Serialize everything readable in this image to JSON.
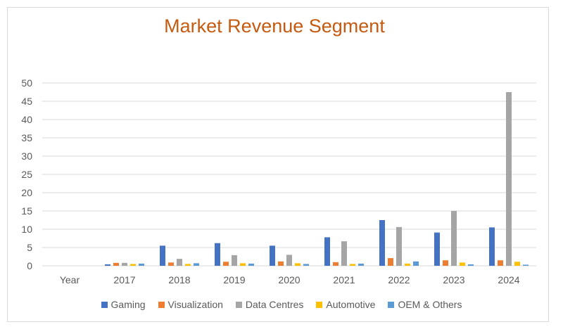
{
  "chart_data": {
    "type": "bar",
    "title": "Market Revenue Segment",
    "categories": [
      "Year",
      "2017",
      "2018",
      "2019",
      "2020",
      "2021",
      "2022",
      "2023",
      "2024"
    ],
    "ylim": [
      0,
      50
    ],
    "yticks": [
      0,
      5,
      10,
      15,
      20,
      25,
      30,
      35,
      40,
      45,
      50
    ],
    "grid": true,
    "legend_position": "bottom",
    "series": [
      {
        "name": "Gaming",
        "color": "#4472c4",
        "values": [
          0,
          0.4,
          5.5,
          6.2,
          5.5,
          7.8,
          12.5,
          9.1,
          10.5
        ]
      },
      {
        "name": "Visualization",
        "color": "#ed7d31",
        "values": [
          0,
          0.8,
          0.9,
          1.1,
          1.2,
          1.0,
          2.1,
          1.5,
          1.5
        ]
      },
      {
        "name": "Data Centres",
        "color": "#a5a5a5",
        "values": [
          0,
          0.8,
          1.9,
          2.9,
          3.0,
          6.7,
          10.6,
          15.0,
          47.5
        ]
      },
      {
        "name": "Automotive",
        "color": "#ffc000",
        "values": [
          0,
          0.5,
          0.5,
          0.7,
          0.7,
          0.5,
          0.6,
          0.9,
          1.1
        ]
      },
      {
        "name": "OEM & Others",
        "color": "#5b9bd5",
        "values": [
          0,
          0.6,
          0.7,
          0.6,
          0.5,
          0.6,
          1.2,
          0.4,
          0.3
        ]
      }
    ]
  }
}
